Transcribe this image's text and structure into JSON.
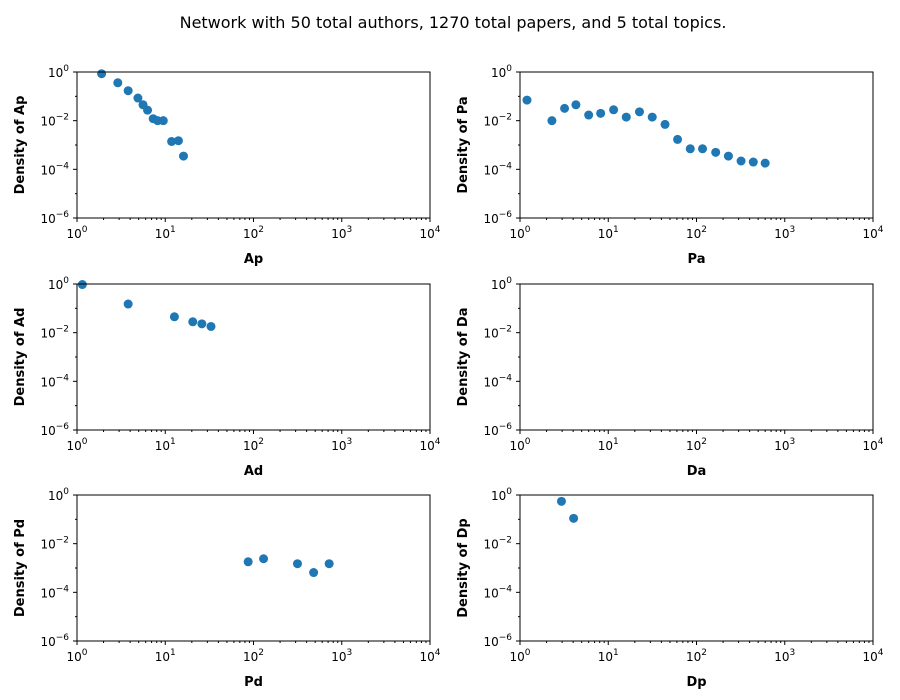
{
  "figure": {
    "title": "Network with 50 total authors, 1270 total papers, and 5 total topics."
  },
  "chart_data": [
    {
      "type": "scatter",
      "xlabel": "Ap",
      "ylabel": "Density of Ap",
      "xscale": "log",
      "yscale": "log",
      "xlim": [
        1,
        10000
      ],
      "ylim": [
        1e-06,
        1
      ],
      "xticks": [
        "10^0",
        "10^1",
        "10^2",
        "10^3",
        "10^4"
      ],
      "yticks": [
        "10^0",
        "10^-2",
        "10^-4",
        "10^-6"
      ],
      "color": "#1f77b4",
      "x": [
        1.9,
        2.9,
        3.8,
        4.9,
        5.6,
        6.3,
        7.3,
        8.2,
        9.5,
        11.8,
        14.1,
        16.1
      ],
      "y": [
        0.85,
        0.36,
        0.17,
        0.085,
        0.045,
        0.027,
        0.012,
        0.01,
        0.01,
        0.0014,
        0.0015,
        0.00035
      ]
    },
    {
      "type": "scatter",
      "xlabel": "Pa",
      "ylabel": "Density of Pa",
      "xscale": "log",
      "yscale": "log",
      "xlim": [
        1,
        10000
      ],
      "ylim": [
        1e-06,
        1
      ],
      "xticks": [
        "10^0",
        "10^1",
        "10^2",
        "10^3",
        "10^4"
      ],
      "yticks": [
        "10^0",
        "10^-2",
        "10^-4",
        "10^-6"
      ],
      "color": "#1f77b4",
      "x": [
        1.2,
        2.3,
        3.2,
        4.3,
        6.0,
        8.2,
        11.5,
        16,
        22.6,
        31.5,
        44,
        61,
        85,
        117,
        165,
        230,
        320,
        440,
        600
      ],
      "y": [
        0.07,
        0.01,
        0.032,
        0.045,
        0.017,
        0.02,
        0.028,
        0.014,
        0.023,
        0.014,
        0.007,
        0.0017,
        0.0007,
        0.0007,
        0.0005,
        0.00035,
        0.00022,
        0.0002,
        0.00018
      ]
    },
    {
      "type": "scatter",
      "xlabel": "Ad",
      "ylabel": "Density of Ad",
      "xscale": "log",
      "yscale": "log",
      "xlim": [
        1,
        10000
      ],
      "ylim": [
        1e-06,
        1
      ],
      "xticks": [
        "10^0",
        "10^1",
        "10^2",
        "10^3",
        "10^4"
      ],
      "yticks": [
        "10^0",
        "10^-2",
        "10^-4",
        "10^-6"
      ],
      "color": "#1f77b4",
      "x": [
        1.15,
        3.8,
        12.7,
        20.5,
        26,
        33
      ],
      "y": [
        0.95,
        0.15,
        0.045,
        0.028,
        0.023,
        0.018
      ]
    },
    {
      "type": "scatter",
      "xlabel": "Da",
      "ylabel": "Density of Da",
      "xscale": "log",
      "yscale": "log",
      "xlim": [
        1,
        10000
      ],
      "ylim": [
        1e-06,
        1
      ],
      "xticks": [
        "10^0",
        "10^1",
        "10^2",
        "10^3",
        "10^4"
      ],
      "yticks": [
        "10^0",
        "10^-2",
        "10^-4",
        "10^-6"
      ],
      "color": "#1f77b4",
      "x": [],
      "y": []
    },
    {
      "type": "scatter",
      "xlabel": "Pd",
      "ylabel": "Density of Pd",
      "xscale": "log",
      "yscale": "log",
      "xlim": [
        1,
        10000
      ],
      "ylim": [
        1e-06,
        1
      ],
      "xticks": [
        "10^0",
        "10^1",
        "10^2",
        "10^3",
        "10^4"
      ],
      "yticks": [
        "10^0",
        "10^-2",
        "10^-4",
        "10^-6"
      ],
      "color": "#1f77b4",
      "x": [
        87,
        130,
        315,
        480,
        720
      ],
      "y": [
        0.0018,
        0.0024,
        0.0015,
        0.00065,
        0.0015
      ]
    },
    {
      "type": "scatter",
      "xlabel": "Dp",
      "ylabel": "Density of Dp",
      "xscale": "log",
      "yscale": "log",
      "xlim": [
        1,
        10000
      ],
      "ylim": [
        1e-06,
        1
      ],
      "xticks": [
        "10^0",
        "10^1",
        "10^2",
        "10^3",
        "10^4"
      ],
      "yticks": [
        "10^0",
        "10^-2",
        "10^-4",
        "10^-6"
      ],
      "color": "#1f77b4",
      "x": [
        2.95,
        4.05
      ],
      "y": [
        0.55,
        0.11
      ]
    }
  ]
}
